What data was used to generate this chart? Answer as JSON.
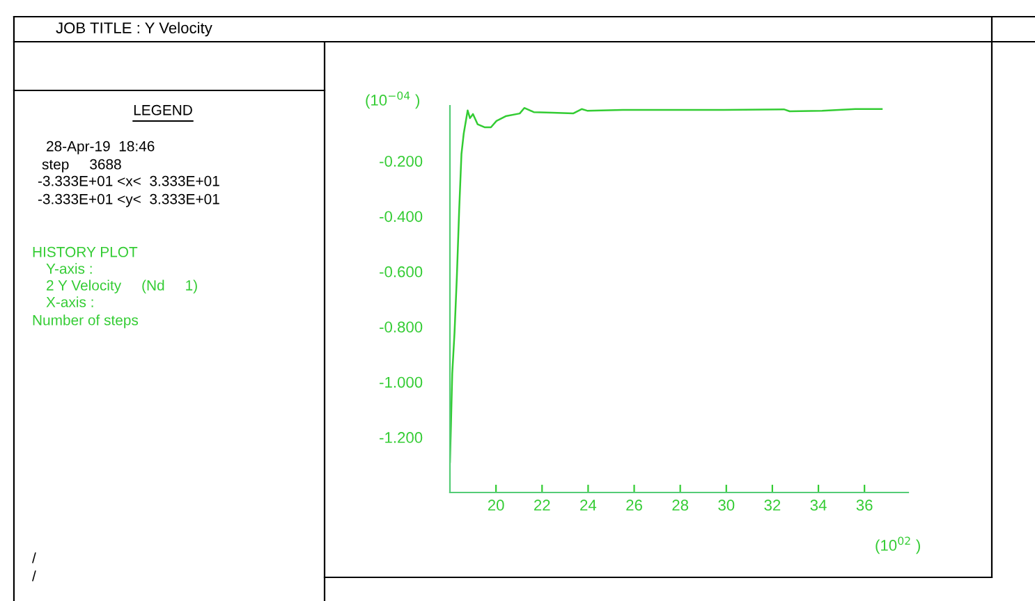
{
  "chart_data": {
    "type": "line",
    "title": "JOB TITLE : Y Velocity",
    "xlabel": "(10$^{02}$ )",
    "ylabel": "(10$^{−04}$ )",
    "annotations": [
      "LEGEND",
      "28-Apr-19  18:46",
      "step     3688",
      "-3.333E+01 <x<  3.333E+01",
      "-3.333E+01 <y<  3.333E+01",
      "HISTORY PLOT",
      "Y-axis :",
      "2 Y Velocity     (Nd     1)",
      "X-axis :",
      "Number of steps",
      "/",
      "/"
    ],
    "x": [
      18.0,
      18.04,
      18.1,
      18.2,
      18.3,
      18.4,
      18.5,
      18.6,
      18.77,
      18.87,
      19.0,
      19.2,
      19.5,
      19.78,
      20.02,
      20.42,
      21.03,
      21.23,
      21.64,
      22.44,
      23.35,
      23.72,
      23.96,
      25.5,
      29.9,
      32.5,
      32.75,
      34.16,
      35.6,
      36.75
    ],
    "series": [
      {
        "color": "#33cc33",
        "values": [
          -1.29,
          -1.17,
          -0.97,
          -0.82,
          -0.62,
          -0.38,
          -0.175,
          -0.1,
          -0.017,
          -0.045,
          -0.03,
          -0.067,
          -0.078,
          -0.078,
          -0.055,
          -0.038,
          -0.028,
          -0.008,
          -0.023,
          -0.025,
          -0.028,
          -0.012,
          -0.018,
          -0.015,
          -0.015,
          -0.013,
          -0.02,
          -0.018,
          -0.012,
          -0.012
        ]
      }
    ],
    "xlim": [
      18.0,
      37.9
    ],
    "ylim": [
      -1.4,
      0
    ],
    "xticks": [
      20,
      22,
      24,
      26,
      28,
      30,
      32,
      34,
      36
    ],
    "yticks": [
      {
        "value": -0.2,
        "label": "-0.200"
      },
      {
        "value": -0.4,
        "label": "-0.400"
      },
      {
        "value": -0.6,
        "label": "-0.600"
      },
      {
        "value": -0.8,
        "label": "-0.800"
      },
      {
        "value": -1.0,
        "label": "-1.000"
      },
      {
        "value": -1.2,
        "label": "-1.200"
      }
    ],
    "grid": false,
    "legend": false,
    "marker": "none",
    "line_style": "solid"
  }
}
